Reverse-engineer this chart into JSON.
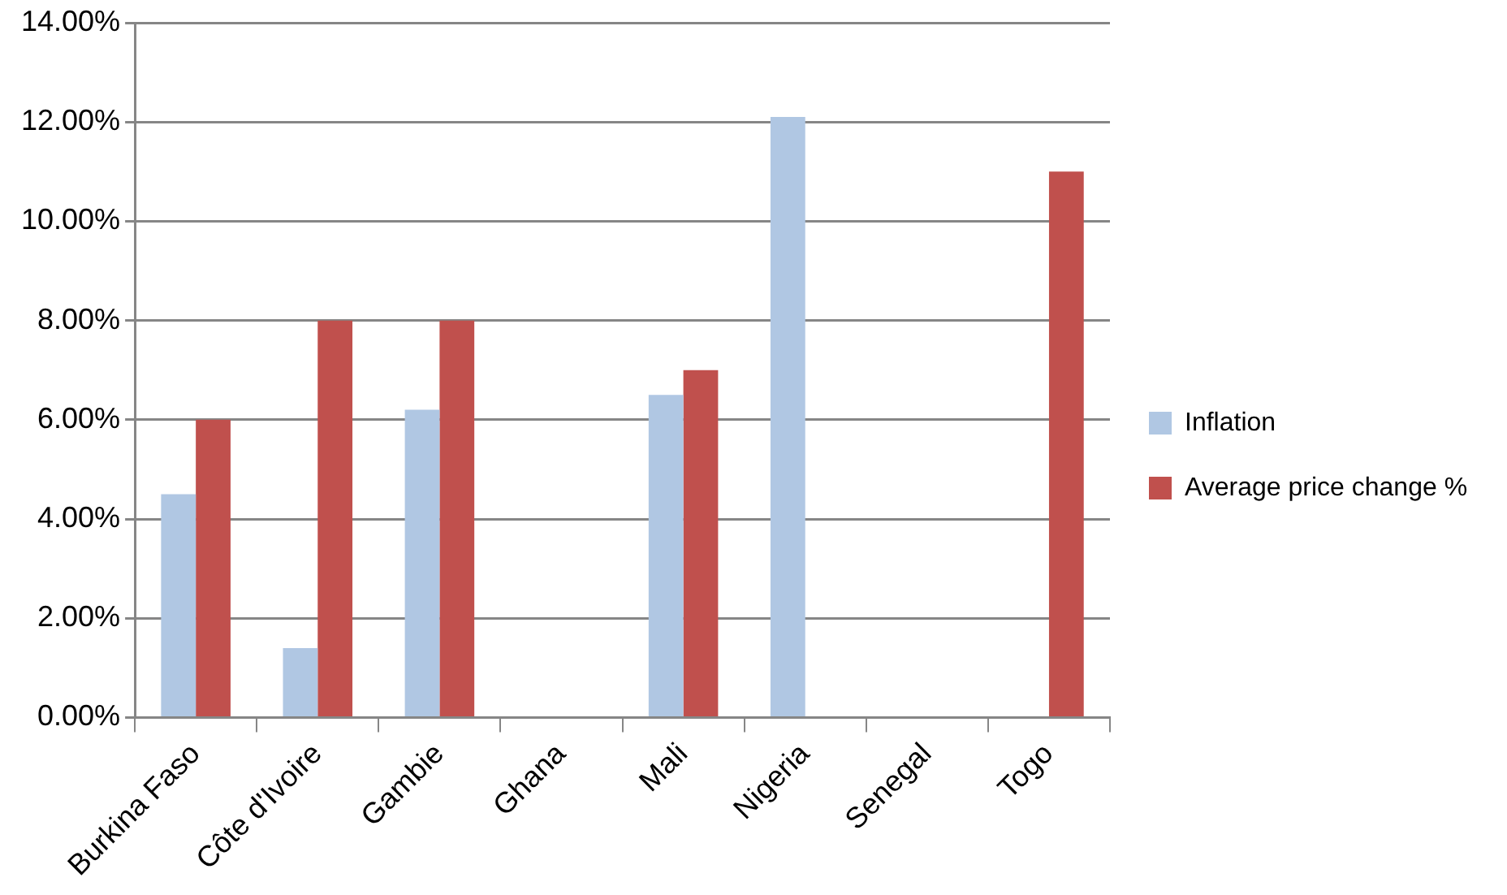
{
  "chart_data": {
    "type": "bar",
    "categories": [
      "Burkina Faso",
      "Côte d'Ivoire",
      "Gambie",
      "Ghana",
      "Mali",
      "Nigeria",
      "Senegal",
      "Togo"
    ],
    "series": [
      {
        "name": "Inflation",
        "color": "#b0c7e3",
        "values": [
          4.5,
          1.4,
          6.2,
          null,
          6.5,
          12.1,
          null,
          null
        ]
      },
      {
        "name": "Average price change %",
        "color": "#c0504d",
        "values": [
          6,
          8,
          8,
          null,
          7,
          null,
          null,
          11
        ]
      }
    ],
    "ylim": [
      0,
      14
    ],
    "yticks": [
      {
        "value": 0,
        "label": "0.00%"
      },
      {
        "value": 2,
        "label": "2.00%"
      },
      {
        "value": 4,
        "label": "4.00%"
      },
      {
        "value": 6,
        "label": "6.00%"
      },
      {
        "value": 8,
        "label": "8.00%"
      },
      {
        "value": 10,
        "label": "10.00%"
      },
      {
        "value": 12,
        "label": "12.00%"
      },
      {
        "value": 14,
        "label": "14.00%"
      }
    ],
    "grid": "y",
    "legend": "right"
  }
}
